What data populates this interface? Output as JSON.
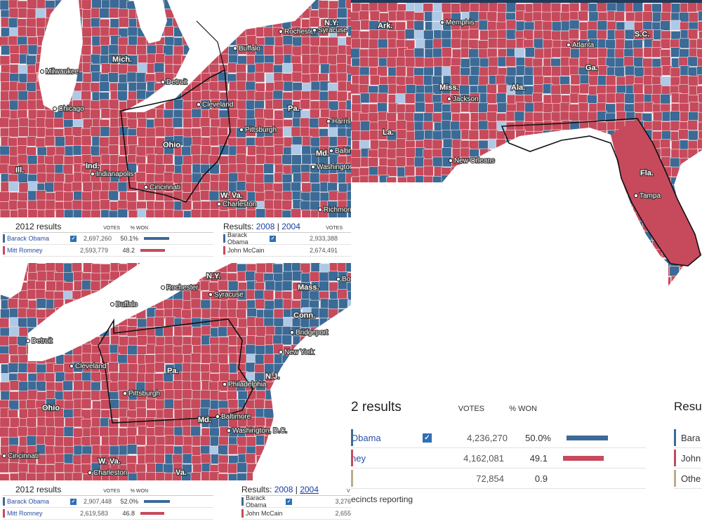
{
  "colors": {
    "dem": "#3b6a96",
    "rep": "#c64a5c",
    "light": "#aec9e6",
    "border": "#f2e9ea",
    "other": "#b8ae8e"
  },
  "panel_tl": {
    "states": [
      "Mich.",
      "N.Y.",
      "Pa.",
      "Ohio",
      "Ind.",
      "Ill.",
      "Md.",
      "W. Va."
    ],
    "cities": [
      "Milwaukee",
      "Chicago",
      "Detroit",
      "Cleveland",
      "Buffalo",
      "Rochester",
      "Syracuse",
      "Pittsburgh",
      "Harrisburg",
      "Indianapolis",
      "Cincinnati",
      "Charleston",
      "Baltimore",
      "Washington",
      "Richmond"
    ],
    "results": {
      "title": "2012 results",
      "votes_h": "VOTES",
      "pct_h": "% WON",
      "rows": [
        {
          "name": "Barack Obama",
          "votes": "2,697,260",
          "pct": "50.1%",
          "party": "dem",
          "bar": 0.501,
          "winner": true
        },
        {
          "name": "Mitt Romney",
          "votes": "2,593,779",
          "pct": "48.2",
          "party": "rep",
          "bar": 0.482,
          "winner": false
        }
      ],
      "prior_prefix": "Results: ",
      "y1": "2008",
      "sep": "|",
      "y2": "2004",
      "prior_votes_h": "VOTES",
      "prior_rows": [
        {
          "name": "Barack Obama",
          "votes": "2,933,388",
          "party": "dem",
          "winner": true
        },
        {
          "name": "John McCain",
          "votes": "2,674,491",
          "party": "rep",
          "winner": false
        }
      ]
    }
  },
  "panel_tr": {
    "states": [
      "Ark.",
      "Miss.",
      "Ala.",
      "Ga.",
      "S.C.",
      "La.",
      "Fla."
    ],
    "cities": [
      "Memphis",
      "Atlanta",
      "Jackson",
      "New Orleans",
      "Tampa"
    ],
    "results": {
      "title": "2 results",
      "votes_h": "VOTES",
      "pct_h": "% WON",
      "rows": [
        {
          "name": "Obama",
          "votes": "4,236,270",
          "pct": "50.0%",
          "party": "dem",
          "bar": 0.5,
          "winner": true
        },
        {
          "name": "ney",
          "votes": "4,162,081",
          "pct": "49.1",
          "party": "rep",
          "bar": 0.491,
          "winner": false
        },
        {
          "name": "",
          "votes": "72,854",
          "pct": "0.9",
          "party": "other",
          "bar": 0,
          "winner": false
        }
      ],
      "footer": "ecincts reporting",
      "prior_title": "Resu",
      "prior_rows": [
        {
          "name": "Bara",
          "party": "dem"
        },
        {
          "name": "John",
          "party": "rep"
        },
        {
          "name": "Othe",
          "party": "other"
        }
      ]
    }
  },
  "panel_bl": {
    "states": [
      "N.Y.",
      "Mass.",
      "Conn.",
      "Pa.",
      "Ohio",
      "Md.",
      "N.J.",
      "W. Va.",
      "Va."
    ],
    "cities": [
      "Buffalo",
      "Rochester",
      "Syracuse",
      "Detroit",
      "Cleveland",
      "Pittsburgh",
      "Philadelphia",
      "New York",
      "Bridgeport",
      "Baltimore",
      "Washington, D.C.",
      "Cincinnati",
      "Charleston",
      "Boston"
    ],
    "results": {
      "title": "2012 results",
      "votes_h": "VOTES",
      "pct_h": "% WON",
      "rows": [
        {
          "name": "Barack Obama",
          "votes": "2,907,448",
          "pct": "52.0%",
          "party": "dem",
          "bar": 0.52,
          "winner": true
        },
        {
          "name": "Mitt Romney",
          "votes": "2,619,583",
          "pct": "46.8",
          "party": "rep",
          "bar": 0.468,
          "winner": false
        }
      ],
      "prior_prefix": "Results: ",
      "y1": "2008",
      "sep": "|",
      "y2": "2004",
      "prior_votes_h": "V",
      "prior_rows": [
        {
          "name": "Barack Obama",
          "votes": "3,276",
          "party": "dem",
          "winner": true
        },
        {
          "name": "John McCain",
          "votes": "2,655",
          "party": "rep",
          "winner": false
        }
      ]
    }
  }
}
